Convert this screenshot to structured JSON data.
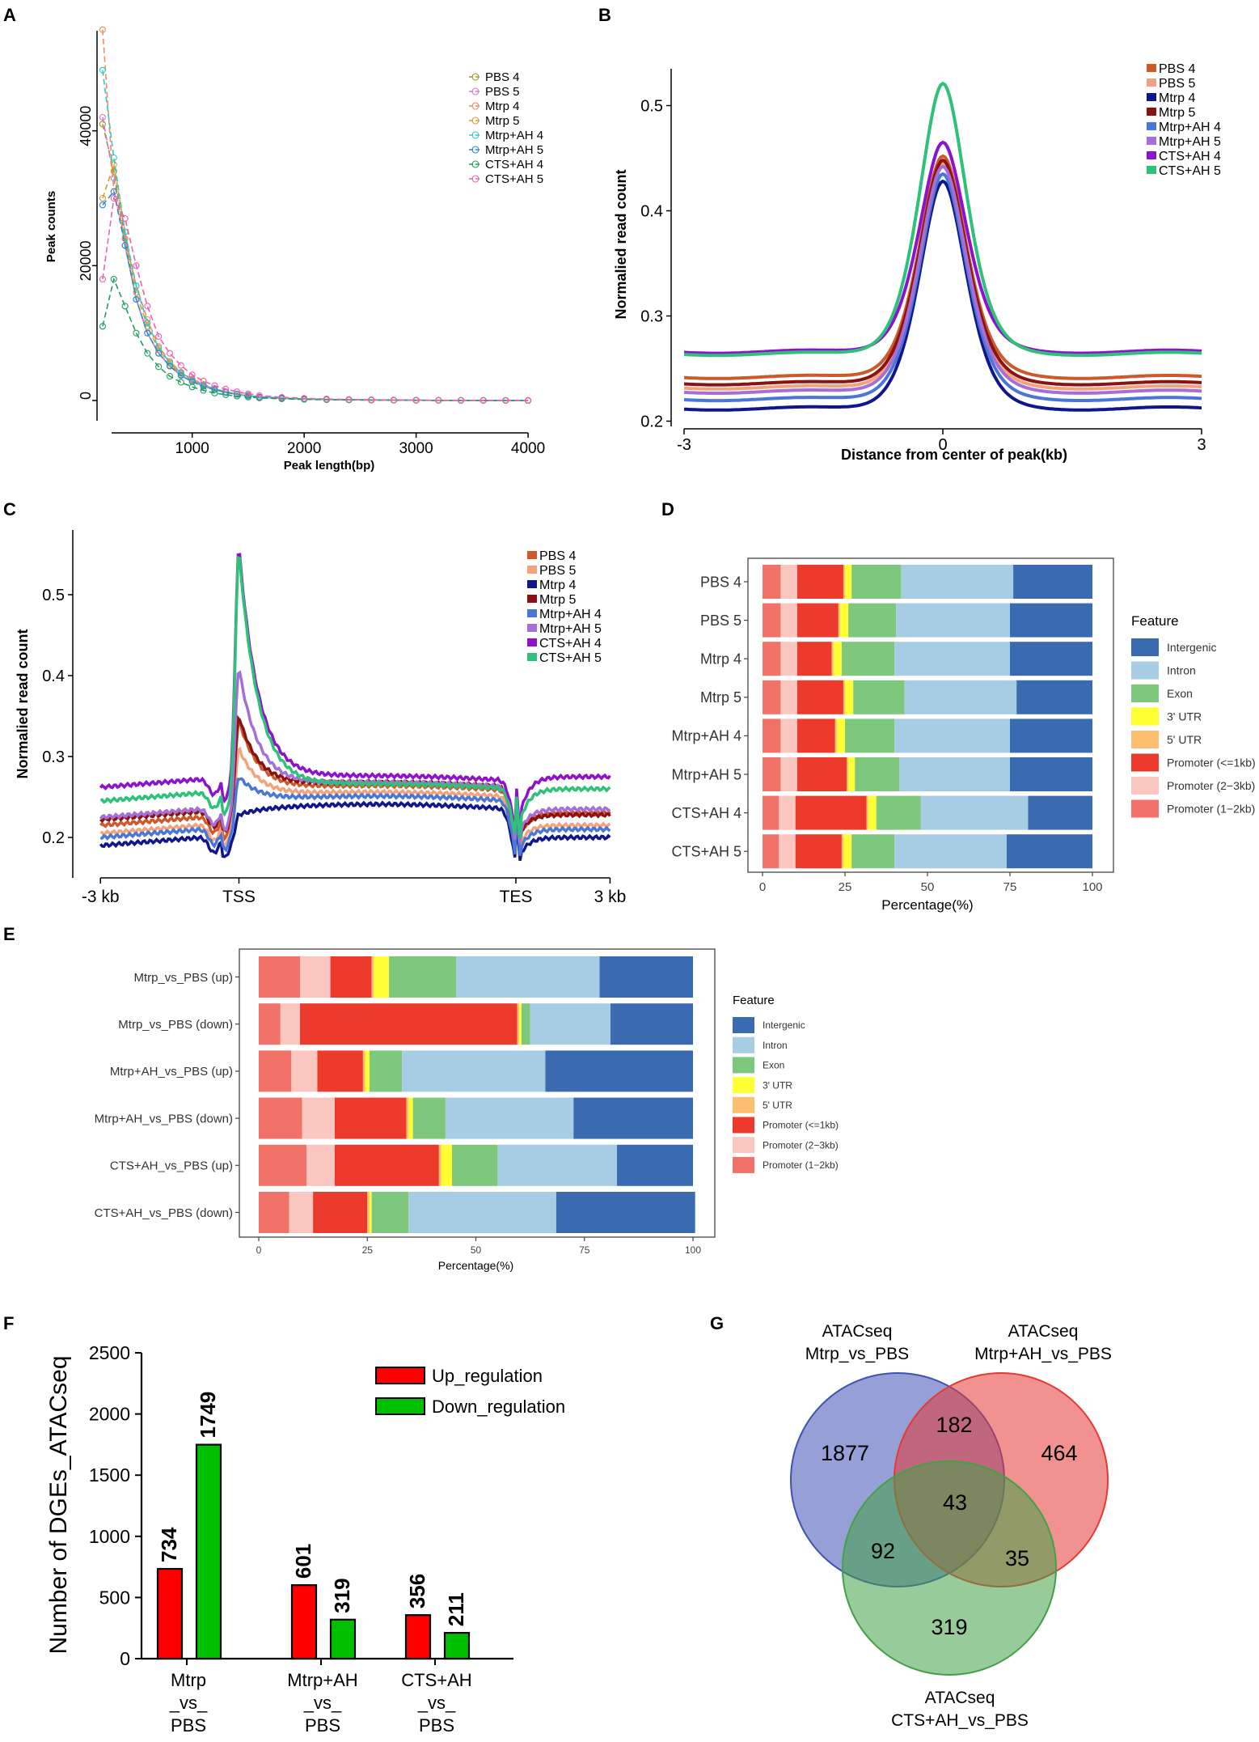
{
  "colors": {
    "pbs4": "#cc5a2a",
    "pbs5": "#f2a27c",
    "mtrp4": "#10178a",
    "mtrp5": "#8b1212",
    "mah4": "#4a76d6",
    "mah5": "#a66fd6",
    "cah4": "#8d12cc",
    "cah5": "#2fc07a",
    "intergenic": "#3a6bb1",
    "intron": "#a6cde3",
    "exon": "#7ec87e",
    "utr3": "#ffff33",
    "utr5": "#fdbf6f",
    "prom1": "#ec3b2c",
    "prom23": "#f9c6c0",
    "prom12": "#f07269",
    "vennA": "#3f51b5",
    "vennB": "#e53935",
    "vennC": "#43a047",
    "up": "#ff0000",
    "down": "#00c000"
  },
  "chart_data": [
    {
      "panel": "A",
      "type": "line",
      "xlabel": "Peak length(bp)",
      "ylabel": "Peak counts",
      "xlim": [
        150,
        4050
      ],
      "ylim": [
        -3000,
        57000
      ],
      "xticks": [
        1000,
        2000,
        3000,
        4000
      ],
      "yticks": [
        0,
        20000,
        40000
      ],
      "x": [
        200,
        300,
        400,
        500,
        600,
        700,
        800,
        900,
        1000,
        1100,
        1200,
        1300,
        1400,
        1500,
        1600,
        1800,
        2000,
        2200,
        2400,
        2600,
        2800,
        3000,
        3200,
        3400,
        3600,
        3800,
        4000
      ],
      "series": [
        {
          "name": "PBS 4",
          "color": "#9a9a20",
          "marker": "+",
          "values": [
            41000,
            34000,
            24000,
            15000,
            10000,
            7000,
            5200,
            3800,
            2900,
            2200,
            1600,
            1200,
            900,
            700,
            500,
            320,
            220,
            160,
            110,
            80,
            60,
            40,
            30,
            20,
            15,
            10,
            6
          ]
        },
        {
          "name": "PBS 5",
          "color": "#d07ad0",
          "marker": "square",
          "values": [
            42000,
            33000,
            23000,
            15000,
            10000,
            7000,
            5100,
            3700,
            2800,
            2100,
            1600,
            1200,
            900,
            700,
            500,
            320,
            220,
            150,
            110,
            80,
            60,
            40,
            30,
            20,
            15,
            10,
            6
          ]
        },
        {
          "name": "Mtrp 4",
          "color": "#f08a60",
          "marker": "diamond",
          "values": [
            55000,
            31000,
            24000,
            17000,
            12000,
            8000,
            5800,
            4200,
            3200,
            2400,
            1800,
            1300,
            1000,
            800,
            550,
            350,
            240,
            170,
            120,
            90,
            60,
            40,
            30,
            20,
            15,
            10,
            6
          ]
        },
        {
          "name": "Mtrp 5",
          "color": "#d8a030",
          "marker": "triangle",
          "values": [
            30000,
            35000,
            25000,
            16000,
            11000,
            7500,
            5500,
            4000,
            3000,
            2300,
            1700,
            1300,
            950,
            700,
            500,
            330,
            230,
            160,
            110,
            80,
            60,
            40,
            30,
            20,
            15,
            10,
            6
          ]
        },
        {
          "name": "Mtrp+AH 4",
          "color": "#30c8c8",
          "marker": "circle",
          "values": [
            49000,
            36000,
            25000,
            17000,
            11500,
            7800,
            5600,
            4100,
            3100,
            2300,
            1700,
            1300,
            950,
            700,
            520,
            340,
            230,
            160,
            110,
            80,
            60,
            40,
            30,
            20,
            15,
            10,
            6
          ]
        },
        {
          "name": "Mtrp+AH 5",
          "color": "#2a8ad8",
          "marker": "down-triangle",
          "values": [
            29000,
            31000,
            23000,
            15000,
            10000,
            7000,
            5100,
            3700,
            2800,
            2100,
            1600,
            1200,
            900,
            700,
            500,
            320,
            220,
            150,
            110,
            80,
            60,
            40,
            30,
            20,
            15,
            10,
            6
          ]
        },
        {
          "name": "CTS+AH 4",
          "color": "#20a060",
          "marker": "x",
          "values": [
            11000,
            18000,
            14000,
            10000,
            7000,
            5000,
            3600,
            2700,
            2000,
            1500,
            1100,
            850,
            650,
            500,
            380,
            250,
            170,
            120,
            90,
            60,
            45,
            30,
            20,
            15,
            10,
            8,
            5
          ]
        },
        {
          "name": "CTS+AH 5",
          "color": "#f060b0",
          "marker": "star",
          "values": [
            18000,
            30000,
            27000,
            20000,
            14000,
            9500,
            7000,
            5200,
            3800,
            2900,
            2200,
            1700,
            1300,
            1000,
            750,
            480,
            330,
            230,
            160,
            110,
            80,
            55,
            40,
            28,
            20,
            14,
            9
          ]
        }
      ]
    },
    {
      "panel": "B",
      "type": "line",
      "xlabel": "Distance from center of peak(kb)",
      "ylabel": "Normalied read count",
      "xlim": [
        -3.15,
        3.15
      ],
      "ylim": [
        0.195,
        0.535
      ],
      "xticks": [
        -3,
        0,
        3
      ],
      "yticks": [
        0.2,
        0.3,
        0.4,
        0.5
      ],
      "series": [
        {
          "name": "PBS 4",
          "color": "#cc5a2a",
          "base": 0.242,
          "peak": 0.452
        },
        {
          "name": "PBS 5",
          "color": "#f2a27c",
          "base": 0.232,
          "peak": 0.445
        },
        {
          "name": "Mtrp 4",
          "color": "#10178a",
          "base": 0.212,
          "peak": 0.428
        },
        {
          "name": "Mtrp 5",
          "color": "#8b1212",
          "base": 0.236,
          "peak": 0.448
        },
        {
          "name": "Mtrp+AH 4",
          "color": "#4a76d6",
          "base": 0.221,
          "peak": 0.435
        },
        {
          "name": "Mtrp+AH 5",
          "color": "#a66fd6",
          "base": 0.228,
          "peak": 0.442
        },
        {
          "name": "CTS+AH 4",
          "color": "#8d12cc",
          "base": 0.266,
          "peak": 0.465
        },
        {
          "name": "CTS+AH 5",
          "color": "#2fc07a",
          "base": 0.264,
          "peak": 0.521
        }
      ]
    },
    {
      "panel": "C",
      "type": "line",
      "xlabel": "",
      "ylabel": "Normalied read count",
      "xlim": [
        0,
        100
      ],
      "ylim": [
        0.15,
        0.58
      ],
      "xtick_labels": [
        "-3 kb",
        "TSS",
        "TES",
        "3 kb"
      ],
      "xtick_pos": [
        5,
        30,
        80,
        97
      ],
      "yticks": [
        0.2,
        0.3,
        0.4,
        0.5
      ],
      "series": [
        {
          "name": "PBS 4",
          "color": "#cc5a2a",
          "base": 0.215,
          "peak": 0.345,
          "body": 0.258,
          "dip": 0.185,
          "end": 0.23
        },
        {
          "name": "PBS 5",
          "color": "#f2a27c",
          "base": 0.205,
          "peak": 0.31,
          "body": 0.25,
          "dip": 0.18,
          "end": 0.215
        },
        {
          "name": "Mtrp 4",
          "color": "#10178a",
          "base": 0.19,
          "peak": 0.228,
          "body": 0.235,
          "dip": 0.165,
          "end": 0.2
        },
        {
          "name": "Mtrp 5",
          "color": "#8b1212",
          "base": 0.222,
          "peak": 0.35,
          "body": 0.262,
          "dip": 0.19,
          "end": 0.228
        },
        {
          "name": "Mtrp+AH 4",
          "color": "#4a76d6",
          "base": 0.2,
          "peak": 0.275,
          "body": 0.245,
          "dip": 0.172,
          "end": 0.21
        },
        {
          "name": "Mtrp+AH 5",
          "color": "#a66fd6",
          "base": 0.225,
          "peak": 0.41,
          "body": 0.262,
          "dip": 0.19,
          "end": 0.235
        },
        {
          "name": "CTS+AH 4",
          "color": "#8d12cc",
          "base": 0.262,
          "peak": 0.56,
          "body": 0.27,
          "dip": 0.2,
          "end": 0.275
        },
        {
          "name": "CTS+AH 5",
          "color": "#2fc07a",
          "base": 0.245,
          "peak": 0.555,
          "body": 0.26,
          "dip": 0.195,
          "end": 0.26
        }
      ]
    },
    {
      "panel": "D",
      "type": "bar",
      "xlabel": "Percentage(%)",
      "legend_title": "Feature",
      "xticks": [
        0,
        25,
        50,
        75,
        100
      ],
      "features": [
        "Intergenic",
        "Intron",
        "Exon",
        "3' UTR",
        "5' UTR",
        "Promoter (<=1kb)",
        "Promoter (2−3kb)",
        "Promoter (1−2kb)"
      ],
      "stack_order": [
        "Promoter (1−2kb)",
        "Promoter (2−3kb)",
        "Promoter (<=1kb)",
        "5' UTR",
        "3' UTR",
        "Exon",
        "Intron",
        "Intergenic"
      ],
      "categories": [
        "PBS 4",
        "PBS 5",
        "Mtrp 4",
        "Mtrp 5",
        "Mtrp+AH 4",
        "Mtrp+AH 5",
        "CTS+AH 4",
        "CTS+AH 5"
      ],
      "series": [
        {
          "name": "Promoter (1−2kb)",
          "values": [
            5.5,
            5.5,
            5.5,
            5.5,
            5.5,
            5.5,
            5.0,
            5.0
          ]
        },
        {
          "name": "Promoter (2−3kb)",
          "values": [
            5.0,
            5.0,
            5.0,
            5.0,
            5.0,
            5.0,
            5.0,
            5.0
          ]
        },
        {
          "name": "Promoter (<=1kb)",
          "values": [
            14.0,
            12.5,
            10.5,
            14.0,
            11.5,
            15.0,
            21.5,
            14.0
          ]
        },
        {
          "name": "5' UTR",
          "values": [
            0.5,
            0.5,
            0.5,
            0.5,
            0.5,
            0.5,
            0.5,
            0.5
          ]
        },
        {
          "name": "3' UTR",
          "values": [
            2.0,
            2.5,
            2.5,
            2.5,
            2.5,
            2.0,
            2.5,
            2.5
          ]
        },
        {
          "name": "Exon",
          "values": [
            15.0,
            14.5,
            16.0,
            15.5,
            15.0,
            13.5,
            13.5,
            13.0
          ]
        },
        {
          "name": "Intron",
          "values": [
            34.0,
            34.5,
            35.0,
            34.0,
            35.0,
            33.5,
            32.5,
            34.0
          ]
        },
        {
          "name": "Intergenic",
          "values": [
            24.0,
            25.0,
            25.0,
            23.0,
            25.0,
            25.0,
            19.5,
            26.0
          ]
        }
      ]
    },
    {
      "panel": "E",
      "type": "bar",
      "xlabel": "Percentage(%)",
      "legend_title": "Feature",
      "xticks": [
        0,
        25,
        50,
        75,
        100
      ],
      "features": [
        "Intergenic",
        "Intron",
        "Exon",
        "3' UTR",
        "5' UTR",
        "Promoter (<=1kb)",
        "Promoter (2−3kb)",
        "Promoter (1−2kb)"
      ],
      "stack_order": [
        "Promoter (1−2kb)",
        "Promoter (2−3kb)",
        "Promoter (<=1kb)",
        "5' UTR",
        "3' UTR",
        "Exon",
        "Intron",
        "Intergenic"
      ],
      "categories": [
        "Mtrp_vs_PBS (up)",
        "Mtrp_vs_PBS (down)",
        "Mtrp+AH_vs_PBS (up)",
        "Mtrp+AH_vs_PBS (down)",
        "CTS+AH_vs_PBS (up)",
        "CTS+AH_vs_PBS (down)"
      ],
      "series": [
        {
          "name": "Promoter (1−2kb)",
          "values": [
            9.5,
            5.0,
            7.5,
            10.0,
            11.0,
            7.0
          ]
        },
        {
          "name": "Promoter (2−3kb)",
          "values": [
            7.0,
            4.5,
            6.0,
            7.5,
            6.5,
            5.5
          ]
        },
        {
          "name": "Promoter (<=1kb)",
          "values": [
            9.5,
            50.0,
            10.5,
            16.5,
            24.0,
            12.5
          ]
        },
        {
          "name": "5' UTR",
          "values": [
            0.5,
            0.5,
            0.5,
            0.5,
            0.5,
            0.5
          ]
        },
        {
          "name": "3' UTR",
          "values": [
            3.5,
            0.5,
            1.0,
            1.0,
            2.5,
            0.5
          ]
        },
        {
          "name": "Exon",
          "values": [
            15.5,
            2.0,
            7.5,
            7.5,
            10.5,
            8.5
          ]
        },
        {
          "name": "Intron",
          "values": [
            33.0,
            18.5,
            33.0,
            29.5,
            27.5,
            34.0
          ]
        },
        {
          "name": "Intergenic",
          "values": [
            21.5,
            19.0,
            34.0,
            27.5,
            17.5,
            32.0
          ]
        }
      ]
    },
    {
      "panel": "F",
      "type": "bar",
      "ylabel": "Number of DGEs_ATACseq",
      "ylim": [
        0,
        2500
      ],
      "yticks": [
        0,
        500,
        1000,
        1500,
        2000,
        2500
      ],
      "categories": [
        [
          "Mtrp",
          "_vs_",
          "PBS"
        ],
        [
          "Mtrp+AH",
          "_vs_",
          "PBS"
        ],
        [
          "CTS+AH",
          "_vs_",
          "PBS"
        ]
      ],
      "series": [
        {
          "name": "Up_regulation",
          "color": "#ff0000",
          "values": [
            734,
            601,
            356
          ]
        },
        {
          "name": "Down_regulation",
          "color": "#00c000",
          "values": [
            1749,
            319,
            211
          ]
        }
      ]
    },
    {
      "panel": "G",
      "type": "venn",
      "sets": [
        {
          "label": [
            "ATACseq",
            "Mtrp_vs_PBS"
          ],
          "color": "#3f51b5"
        },
        {
          "label": [
            "ATACseq",
            "Mtrp+AH_vs_PBS"
          ],
          "color": "#e53935"
        },
        {
          "label": [
            "ATACseq",
            "CTS+AH_vs_PBS"
          ],
          "color": "#43a047"
        }
      ],
      "regions": {
        "A_only": 1877,
        "B_only": 464,
        "C_only": 319,
        "AB": 182,
        "AC": 92,
        "BC": 35,
        "ABC": 43
      }
    }
  ]
}
